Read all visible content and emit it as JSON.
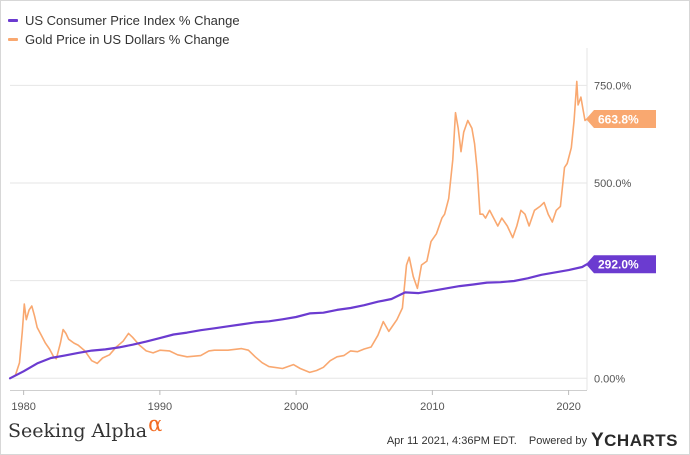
{
  "chart_data": {
    "type": "line",
    "xlabel": "",
    "ylabel": "",
    "xlim": [
      1979.0,
      2021.35
    ],
    "ylim": [
      -30,
      820
    ],
    "x_ticks": [
      1980,
      1990,
      2000,
      2010,
      2020
    ],
    "y_ticks": [
      0,
      250,
      500,
      750
    ],
    "y_tick_labels": [
      "0.00%",
      "",
      "500.0%",
      "750.0%"
    ],
    "grid": true,
    "legend_position": "top-left",
    "series": [
      {
        "name": "US Consumer Price Index % Change",
        "color": "#6b3bd0",
        "end_label": "292.0%",
        "points": [
          [
            1979.0,
            0
          ],
          [
            1980,
            18
          ],
          [
            1981,
            38
          ],
          [
            1982,
            52
          ],
          [
            1983,
            58
          ],
          [
            1984,
            65
          ],
          [
            1985,
            71
          ],
          [
            1986,
            74
          ],
          [
            1987,
            79
          ],
          [
            1988,
            86
          ],
          [
            1989,
            94
          ],
          [
            1990,
            103
          ],
          [
            1991,
            112
          ],
          [
            1992,
            117
          ],
          [
            1993,
            123
          ],
          [
            1994,
            128
          ],
          [
            1995,
            133
          ],
          [
            1996,
            138
          ],
          [
            1997,
            143
          ],
          [
            1998,
            146
          ],
          [
            1999,
            151
          ],
          [
            2000,
            157
          ],
          [
            2001,
            166
          ],
          [
            2002,
            168
          ],
          [
            2003,
            175
          ],
          [
            2004,
            180
          ],
          [
            2005,
            187
          ],
          [
            2006,
            196
          ],
          [
            2007,
            203
          ],
          [
            2008,
            220
          ],
          [
            2009,
            218
          ],
          [
            2010,
            224
          ],
          [
            2011,
            230
          ],
          [
            2012,
            236
          ],
          [
            2013,
            240
          ],
          [
            2014,
            245
          ],
          [
            2015,
            246
          ],
          [
            2016,
            249
          ],
          [
            2017,
            256
          ],
          [
            2018,
            265
          ],
          [
            2019,
            271
          ],
          [
            2020,
            277
          ],
          [
            2021,
            285
          ],
          [
            2021.35,
            292
          ]
        ]
      },
      {
        "name": "Gold Price in US Dollars % Change",
        "color": "#f9a870",
        "end_label": "663.8%",
        "points": [
          [
            1979.0,
            0
          ],
          [
            1979.4,
            8
          ],
          [
            1979.7,
            40
          ],
          [
            1979.9,
            120
          ],
          [
            1980.05,
            190
          ],
          [
            1980.2,
            150
          ],
          [
            1980.4,
            175
          ],
          [
            1980.6,
            185
          ],
          [
            1980.8,
            160
          ],
          [
            1981.0,
            130
          ],
          [
            1981.3,
            110
          ],
          [
            1981.6,
            90
          ],
          [
            1981.9,
            75
          ],
          [
            1982.2,
            55
          ],
          [
            1982.4,
            50
          ],
          [
            1982.7,
            90
          ],
          [
            1982.9,
            125
          ],
          [
            1983.1,
            115
          ],
          [
            1983.3,
            100
          ],
          [
            1983.7,
            90
          ],
          [
            1984.0,
            85
          ],
          [
            1984.5,
            70
          ],
          [
            1985.0,
            45
          ],
          [
            1985.4,
            38
          ],
          [
            1985.8,
            52
          ],
          [
            1986.3,
            60
          ],
          [
            1986.8,
            80
          ],
          [
            1987.3,
            95
          ],
          [
            1987.7,
            115
          ],
          [
            1988.0,
            105
          ],
          [
            1988.5,
            85
          ],
          [
            1989.0,
            70
          ],
          [
            1989.5,
            65
          ],
          [
            1990.0,
            72
          ],
          [
            1990.7,
            70
          ],
          [
            1991.3,
            60
          ],
          [
            1992.0,
            55
          ],
          [
            1993.0,
            58
          ],
          [
            1993.6,
            70
          ],
          [
            1994.0,
            72
          ],
          [
            1995.0,
            72
          ],
          [
            1996.0,
            76
          ],
          [
            1996.5,
            72
          ],
          [
            1997.0,
            55
          ],
          [
            1997.5,
            40
          ],
          [
            1998.0,
            30
          ],
          [
            1999.0,
            25
          ],
          [
            1999.8,
            35
          ],
          [
            2000.3,
            25
          ],
          [
            2001.0,
            15
          ],
          [
            2001.5,
            20
          ],
          [
            2002.0,
            28
          ],
          [
            2002.5,
            45
          ],
          [
            2003.0,
            55
          ],
          [
            2003.5,
            58
          ],
          [
            2004.0,
            70
          ],
          [
            2004.5,
            68
          ],
          [
            2005.0,
            75
          ],
          [
            2005.5,
            80
          ],
          [
            2006.0,
            110
          ],
          [
            2006.4,
            145
          ],
          [
            2006.8,
            120
          ],
          [
            2007.0,
            130
          ],
          [
            2007.4,
            150
          ],
          [
            2007.8,
            180
          ],
          [
            2008.1,
            290
          ],
          [
            2008.3,
            310
          ],
          [
            2008.6,
            260
          ],
          [
            2008.9,
            230
          ],
          [
            2009.2,
            290
          ],
          [
            2009.6,
            300
          ],
          [
            2009.9,
            350
          ],
          [
            2010.3,
            370
          ],
          [
            2010.7,
            410
          ],
          [
            2010.9,
            420
          ],
          [
            2011.2,
            460
          ],
          [
            2011.5,
            560
          ],
          [
            2011.7,
            680
          ],
          [
            2011.9,
            640
          ],
          [
            2012.1,
            580
          ],
          [
            2012.3,
            630
          ],
          [
            2012.6,
            660
          ],
          [
            2012.9,
            640
          ],
          [
            2013.1,
            600
          ],
          [
            2013.3,
            530
          ],
          [
            2013.5,
            420
          ],
          [
            2013.7,
            420
          ],
          [
            2013.9,
            410
          ],
          [
            2014.2,
            430
          ],
          [
            2014.5,
            410
          ],
          [
            2014.8,
            390
          ],
          [
            2015.1,
            410
          ],
          [
            2015.5,
            390
          ],
          [
            2015.9,
            360
          ],
          [
            2016.2,
            390
          ],
          [
            2016.5,
            430
          ],
          [
            2016.8,
            420
          ],
          [
            2017.1,
            390
          ],
          [
            2017.5,
            430
          ],
          [
            2017.9,
            440
          ],
          [
            2018.2,
            450
          ],
          [
            2018.5,
            420
          ],
          [
            2018.8,
            400
          ],
          [
            2019.1,
            430
          ],
          [
            2019.4,
            440
          ],
          [
            2019.7,
            540
          ],
          [
            2019.9,
            550
          ],
          [
            2020.2,
            590
          ],
          [
            2020.4,
            660
          ],
          [
            2020.6,
            760
          ],
          [
            2020.7,
            700
          ],
          [
            2020.9,
            720
          ],
          [
            2021.05,
            690
          ],
          [
            2021.2,
            660
          ],
          [
            2021.35,
            663.8
          ]
        ]
      }
    ]
  },
  "footer": {
    "brand": "Seeking Alpha",
    "brand_symbol": "α",
    "timestamp": "Apr 11 2021, 4:36PM EDT.",
    "powered_by": "Powered by",
    "logo_y": "Y",
    "logo_rest": "CHARTS"
  }
}
